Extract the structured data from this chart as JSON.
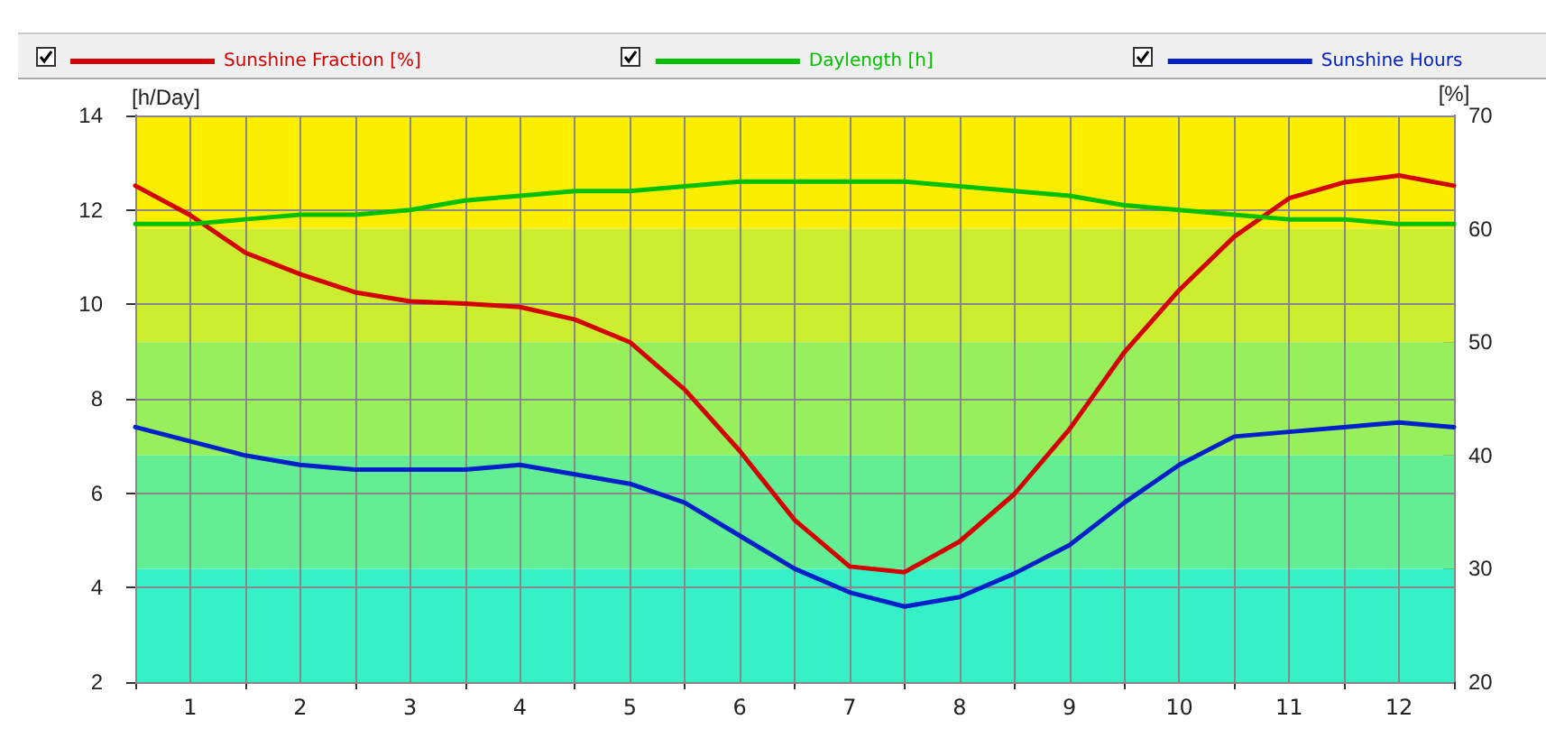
{
  "chart_data": {
    "type": "line",
    "ylabel": "[h/Day]",
    "y2label": "[%]",
    "x": [
      0.5,
      1,
      1.5,
      2,
      2.5,
      3,
      3.5,
      4,
      4.5,
      5,
      5.5,
      6,
      6.5,
      7,
      7.5,
      8,
      8.5,
      9,
      9.5,
      10,
      10.5,
      11,
      11.5,
      12,
      12.5
    ],
    "xlim": [
      0.5,
      12.5
    ],
    "xticks": [
      {
        "value": 0.5,
        "label": null
      },
      1,
      {
        "value": 1.5,
        "label": null
      },
      2,
      {
        "value": 2.5,
        "label": null
      },
      3,
      {
        "value": 3.5,
        "label": null
      },
      4,
      {
        "value": 4.5,
        "label": null
      },
      5,
      {
        "value": 5.5,
        "label": null
      },
      6,
      {
        "value": 6.5,
        "label": null
      },
      7,
      {
        "value": 7.5,
        "label": null
      },
      8,
      {
        "value": 8.5,
        "label": null
      },
      9,
      {
        "value": 9.5,
        "label": null
      },
      10,
      {
        "value": 10.5,
        "label": null
      },
      11,
      {
        "value": 11.5,
        "label": null
      },
      12,
      {
        "value": 12.5,
        "label": null
      }
    ],
    "ylim": [
      2,
      14
    ],
    "yticks": [
      2,
      4,
      6,
      8,
      10,
      12,
      14
    ],
    "y2lim": [
      20,
      70
    ],
    "y2ticks": [
      20,
      30,
      40,
      50,
      60,
      70
    ],
    "series": [
      {
        "name": "Sunshine Fraction [%]",
        "color": "#d40000",
        "axis": "y2",
        "values": [
          63.8,
          61.2,
          57.9,
          56,
          54.4,
          53.6,
          53.4,
          53.1,
          52,
          50,
          45.8,
          40.4,
          34.3,
          30.2,
          29.7,
          32.4,
          36.6,
          42.3,
          49.1,
          54.6,
          59.3,
          62.7,
          64.1,
          64.7,
          63.8
        ]
      },
      {
        "name": "Daylength [h]",
        "color": "#00c000",
        "values": [
          11.7,
          11.7,
          11.8,
          11.9,
          11.9,
          12.0,
          12.2,
          12.3,
          12.4,
          12.4,
          12.5,
          12.6,
          12.6,
          12.6,
          12.6,
          12.5,
          12.4,
          12.3,
          12.1,
          12.0,
          11.9,
          11.8,
          11.8,
          11.7,
          11.7
        ]
      },
      {
        "name": "Sunshine Hours",
        "color": "#0020c8",
        "values": [
          7.4,
          7.1,
          6.8,
          6.6,
          6.5,
          6.5,
          6.5,
          6.6,
          6.4,
          6.2,
          5.8,
          5.1,
          4.4,
          3.9,
          3.6,
          3.8,
          4.3,
          4.9,
          5.8,
          6.6,
          7.2,
          7.3,
          7.4,
          7.5,
          7.4
        ]
      }
    ],
    "bands": [
      {
        "axis": "y2",
        "from": 60,
        "to": 70,
        "color": "#fcee00"
      },
      {
        "axis": "y2",
        "from": 50,
        "to": 60,
        "color": "#cdee30"
      },
      {
        "axis": "y2",
        "from": 40,
        "to": 50,
        "color": "#98ef5c"
      },
      {
        "axis": "y2",
        "from": 30,
        "to": 40,
        "color": "#64ee94"
      },
      {
        "axis": "y2",
        "from": 20,
        "to": 30,
        "color": "#36f0c8"
      }
    ],
    "grid": true,
    "legend": "top",
    "marker": "none",
    "line_style": "solid"
  }
}
